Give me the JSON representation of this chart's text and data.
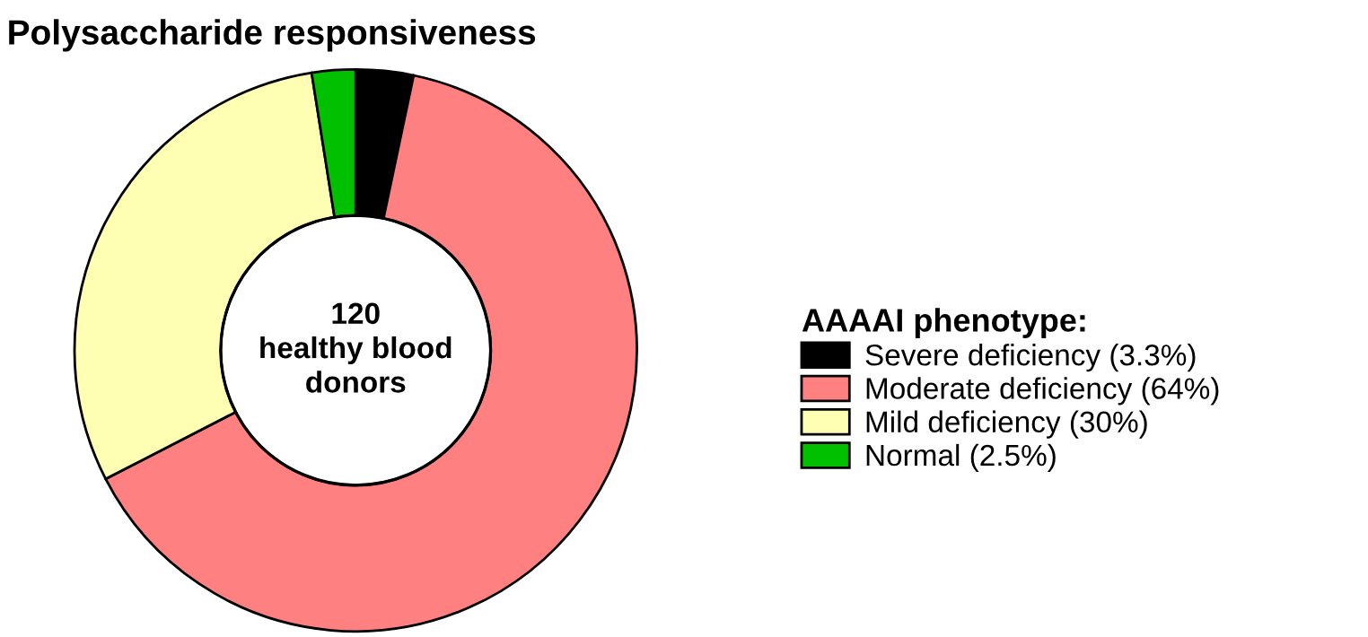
{
  "chart_data": {
    "type": "donut",
    "title": "Polysaccharide responsiveness",
    "legend_title": "AAAAI phenotype:",
    "categories": [
      "Severe deficiency (3.3%)",
      "Moderate deficiency (64%)",
      "Mild deficiency (30%)",
      "Normal (2.5%)"
    ],
    "values": [
      3.3,
      64,
      30,
      2.5
    ],
    "colors": [
      "#000000",
      "#ff8080",
      "#ffffb3",
      "#00c000"
    ],
    "annotations": [
      "120\nhealthy blood\ndonors"
    ],
    "legend": "right"
  }
}
